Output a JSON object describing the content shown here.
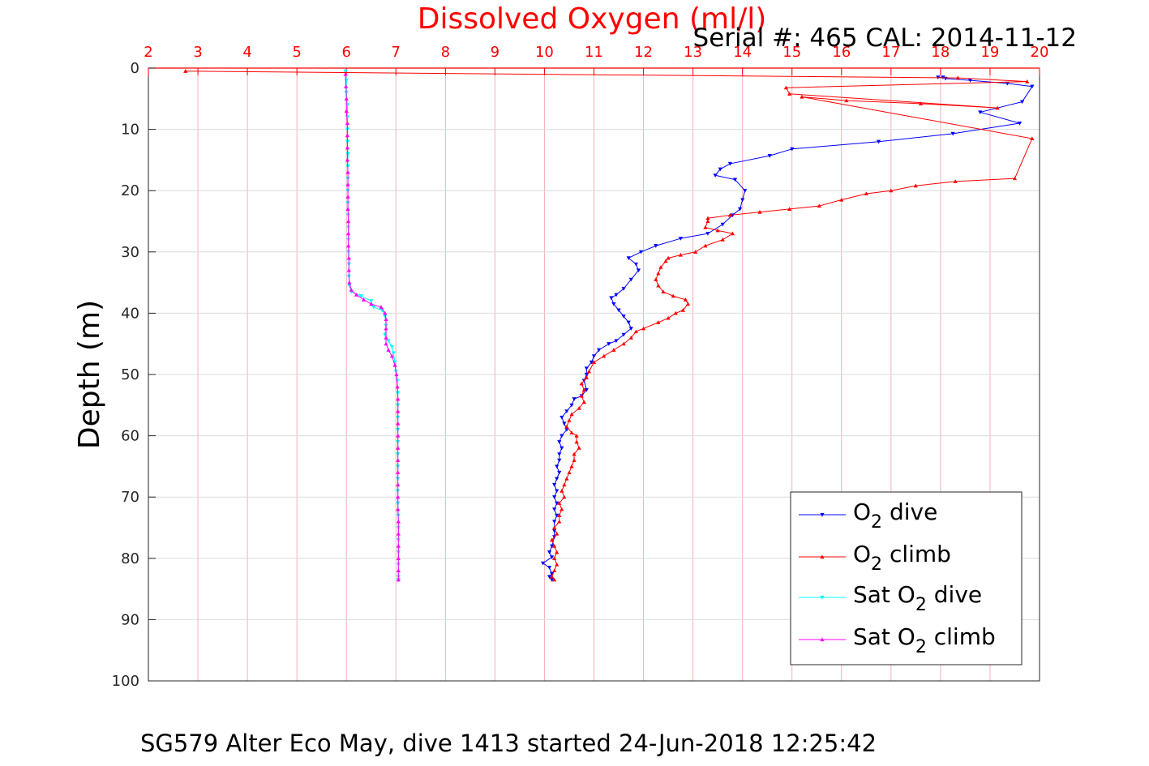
{
  "figure": {
    "title": "Dissolved Oxygen (ml/l)",
    "serial_text": "Serial #: 465  CAL: 2014-11-12",
    "footer": "SG579 Alter Eco May, dive 1413 started 24-Jun-2018 12:25:42"
  },
  "colors": {
    "title": "#ff0000",
    "x_axis": "#ff0000",
    "grid": "#f4b0b8",
    "o2_dive": "#0000ff",
    "o2_climb": "#ff0000",
    "sat_dive": "#00ffff",
    "sat_climb": "#ff00ff"
  },
  "chart_data": {
    "type": "line",
    "title": "Dissolved Oxygen (ml/l)",
    "xlabel": "",
    "ylabel": "Depth (m)",
    "x_axis_position": "top",
    "y_direction": "reversed",
    "xlim": [
      2,
      20
    ],
    "ylim": [
      0,
      100
    ],
    "xticks": [
      2,
      3,
      4,
      5,
      6,
      7,
      8,
      9,
      10,
      11,
      12,
      13,
      14,
      15,
      16,
      17,
      18,
      19,
      20
    ],
    "yticks": [
      0,
      10,
      20,
      30,
      40,
      50,
      60,
      70,
      80,
      90,
      100
    ],
    "grid": true,
    "legend_position": "bottom-right",
    "series": [
      {
        "name": "O2 dive",
        "legend_main": "O",
        "legend_sub": "2",
        "legend_post": " dive",
        "color": "#0000ff",
        "marker": "down-triangle",
        "points": [
          [
            17.95,
            1.5
          ],
          [
            18.05,
            1.5
          ],
          [
            18.1,
            1.7
          ],
          [
            18.6,
            2.0
          ],
          [
            19.35,
            2.5
          ],
          [
            19.85,
            3.0
          ],
          [
            19.65,
            5.5
          ],
          [
            18.8,
            7.2
          ],
          [
            19.6,
            9.0
          ],
          [
            18.25,
            10.7
          ],
          [
            16.75,
            12.0
          ],
          [
            15.0,
            13.2
          ],
          [
            14.55,
            14.3
          ],
          [
            13.75,
            15.6
          ],
          [
            13.55,
            16.5
          ],
          [
            13.45,
            17.5
          ],
          [
            13.85,
            18.2
          ],
          [
            14.05,
            20.0
          ],
          [
            14.0,
            21.5
          ],
          [
            13.95,
            23.0
          ],
          [
            13.8,
            24.0
          ],
          [
            13.6,
            25.5
          ],
          [
            13.3,
            27.0
          ],
          [
            12.75,
            27.8
          ],
          [
            12.25,
            29.0
          ],
          [
            11.95,
            30.0
          ],
          [
            11.7,
            31.0
          ],
          [
            11.85,
            32.0
          ],
          [
            11.9,
            33.0
          ],
          [
            11.75,
            34.5
          ],
          [
            11.6,
            36.0
          ],
          [
            11.45,
            37.0
          ],
          [
            11.35,
            37.5
          ],
          [
            11.4,
            38.5
          ],
          [
            11.5,
            39.5
          ],
          [
            11.6,
            40.5
          ],
          [
            11.7,
            41.5
          ],
          [
            11.75,
            42.5
          ],
          [
            11.6,
            43.5
          ],
          [
            11.45,
            44.5
          ],
          [
            11.3,
            45.0
          ],
          [
            11.1,
            46.0
          ],
          [
            11.0,
            47.0
          ],
          [
            10.95,
            48.0
          ],
          [
            10.85,
            49.0
          ],
          [
            10.85,
            50.0
          ],
          [
            10.8,
            51.0
          ],
          [
            10.85,
            52.5
          ],
          [
            10.75,
            53.5
          ],
          [
            10.6,
            54.0
          ],
          [
            10.55,
            55.0
          ],
          [
            10.45,
            56.0
          ],
          [
            10.35,
            57.0
          ],
          [
            10.4,
            58.0
          ],
          [
            10.45,
            59.0
          ],
          [
            10.35,
            60.0
          ],
          [
            10.3,
            61.0
          ],
          [
            10.35,
            62.0
          ],
          [
            10.3,
            63.0
          ],
          [
            10.3,
            64.0
          ],
          [
            10.25,
            65.0
          ],
          [
            10.3,
            66.0
          ],
          [
            10.25,
            67.0
          ],
          [
            10.2,
            68.0
          ],
          [
            10.25,
            69.0
          ],
          [
            10.2,
            70.0
          ],
          [
            10.25,
            71.0
          ],
          [
            10.2,
            72.0
          ],
          [
            10.25,
            73.0
          ],
          [
            10.2,
            74.0
          ],
          [
            10.2,
            75.5
          ],
          [
            10.2,
            76.5
          ],
          [
            10.15,
            78.0
          ],
          [
            10.1,
            79.0
          ],
          [
            10.15,
            79.8
          ],
          [
            9.97,
            80.8
          ],
          [
            10.1,
            81.5
          ],
          [
            10.15,
            82.5
          ],
          [
            10.1,
            83.0
          ],
          [
            10.15,
            83.5
          ]
        ]
      },
      {
        "name": "O2 climb",
        "legend_main": "O",
        "legend_sub": "2",
        "legend_post": " climb",
        "color": "#ff0000",
        "marker": "up-triangle",
        "points": [
          [
            10.2,
            83.5
          ],
          [
            10.15,
            83.0
          ],
          [
            10.2,
            82.0
          ],
          [
            10.25,
            81.0
          ],
          [
            10.2,
            80.0
          ],
          [
            10.25,
            79.0
          ],
          [
            10.2,
            78.0
          ],
          [
            10.15,
            77.0
          ],
          [
            10.25,
            76.0
          ],
          [
            10.2,
            75.0
          ],
          [
            10.3,
            74.0
          ],
          [
            10.3,
            73.0
          ],
          [
            10.35,
            72.0
          ],
          [
            10.3,
            71.0
          ],
          [
            10.4,
            70.0
          ],
          [
            10.35,
            69.0
          ],
          [
            10.4,
            68.0
          ],
          [
            10.45,
            67.0
          ],
          [
            10.5,
            66.0
          ],
          [
            10.55,
            65.0
          ],
          [
            10.6,
            64.0
          ],
          [
            10.6,
            63.0
          ],
          [
            10.7,
            62.0
          ],
          [
            10.65,
            61.0
          ],
          [
            10.65,
            60.0
          ],
          [
            10.55,
            59.5
          ],
          [
            10.45,
            58.5
          ],
          [
            10.5,
            57.5
          ],
          [
            10.55,
            56.5
          ],
          [
            10.7,
            55.5
          ],
          [
            10.8,
            54.5
          ],
          [
            10.75,
            53.5
          ],
          [
            10.8,
            52.5
          ],
          [
            10.75,
            51.5
          ],
          [
            10.85,
            50.5
          ],
          [
            10.9,
            49.5
          ],
          [
            11.0,
            48.0
          ],
          [
            11.2,
            47.0
          ],
          [
            11.4,
            46.0
          ],
          [
            11.6,
            45.0
          ],
          [
            11.75,
            44.0
          ],
          [
            11.85,
            43.0
          ],
          [
            12.0,
            42.5
          ],
          [
            12.3,
            41.5
          ],
          [
            12.5,
            40.8
          ],
          [
            12.65,
            40.0
          ],
          [
            12.8,
            39.5
          ],
          [
            12.9,
            38.5
          ],
          [
            12.85,
            37.8
          ],
          [
            12.6,
            37.2
          ],
          [
            12.4,
            36.5
          ],
          [
            12.3,
            35.5
          ],
          [
            12.25,
            34.5
          ],
          [
            12.3,
            33.5
          ],
          [
            12.35,
            32.5
          ],
          [
            12.45,
            31.5
          ],
          [
            12.5,
            31.0
          ],
          [
            12.75,
            30.5
          ],
          [
            13.05,
            30.0
          ],
          [
            13.25,
            29.0
          ],
          [
            13.6,
            28.0
          ],
          [
            13.8,
            27.0
          ],
          [
            13.5,
            26.5
          ],
          [
            13.25,
            26.0
          ],
          [
            13.3,
            25.0
          ],
          [
            13.3,
            24.5
          ],
          [
            13.75,
            24.0
          ],
          [
            14.35,
            23.5
          ],
          [
            14.95,
            23.0
          ],
          [
            15.55,
            22.5
          ],
          [
            16.0,
            21.5
          ],
          [
            16.5,
            20.5
          ],
          [
            17.0,
            20.0
          ],
          [
            17.5,
            19.2
          ],
          [
            18.3,
            18.5
          ],
          [
            19.5,
            18.0
          ],
          [
            19.85,
            11.5
          ],
          [
            15.2,
            4.7
          ],
          [
            16.1,
            5.3
          ],
          [
            17.6,
            5.8
          ],
          [
            19.15,
            6.5
          ],
          [
            14.95,
            4.2
          ],
          [
            14.88,
            3.2
          ],
          [
            19.75,
            2.2
          ],
          [
            18.35,
            1.6
          ],
          [
            2.75,
            0.5
          ]
        ]
      },
      {
        "name": "Sat O2 dive",
        "legend_main": "Sat O",
        "legend_sub": "2",
        "legend_post": " dive",
        "color": "#00ffff",
        "marker": "down-triangle",
        "points": [
          [
            5.98,
            0.5
          ],
          [
            6.0,
            2.0
          ],
          [
            6.0,
            4.0
          ],
          [
            6.02,
            6.0
          ],
          [
            6.02,
            8.0
          ],
          [
            6.02,
            10.0
          ],
          [
            6.02,
            12.0
          ],
          [
            6.03,
            14.0
          ],
          [
            6.03,
            16.0
          ],
          [
            6.03,
            18.0
          ],
          [
            6.03,
            20.0
          ],
          [
            6.03,
            22.0
          ],
          [
            6.04,
            24.0
          ],
          [
            6.04,
            26.0
          ],
          [
            6.04,
            28.0
          ],
          [
            6.04,
            30.0
          ],
          [
            6.05,
            32.0
          ],
          [
            6.05,
            34.0
          ],
          [
            6.06,
            35.5
          ],
          [
            6.1,
            36.5
          ],
          [
            6.3,
            37.2
          ],
          [
            6.5,
            38.0
          ],
          [
            6.55,
            39.0
          ],
          [
            6.72,
            39.5
          ],
          [
            6.78,
            40.5
          ],
          [
            6.8,
            42.0
          ],
          [
            6.78,
            43.5
          ],
          [
            6.85,
            44.5
          ],
          [
            6.92,
            45.5
          ],
          [
            6.95,
            46.5
          ],
          [
            6.98,
            48.0
          ],
          [
            7.0,
            49.5
          ],
          [
            7.03,
            51.0
          ],
          [
            7.04,
            53.0
          ],
          [
            7.04,
            55.0
          ],
          [
            7.04,
            57.0
          ],
          [
            7.04,
            59.0
          ],
          [
            7.04,
            61.0
          ],
          [
            7.04,
            63.0
          ],
          [
            7.04,
            65.0
          ],
          [
            7.04,
            67.0
          ],
          [
            7.04,
            69.0
          ],
          [
            7.04,
            71.0
          ],
          [
            7.05,
            73.0
          ],
          [
            7.05,
            75.0
          ],
          [
            7.05,
            77.0
          ],
          [
            7.05,
            79.0
          ],
          [
            7.05,
            81.0
          ],
          [
            7.05,
            83.0
          ],
          [
            7.05,
            83.5
          ]
        ]
      },
      {
        "name": "Sat O2 climb",
        "legend_main": "Sat O",
        "legend_sub": "2",
        "legend_post": " climb",
        "color": "#ff00ff",
        "marker": "up-triangle",
        "points": [
          [
            7.05,
            83.5
          ],
          [
            7.05,
            82.0
          ],
          [
            7.05,
            80.0
          ],
          [
            7.05,
            78.0
          ],
          [
            7.05,
            76.0
          ],
          [
            7.05,
            74.0
          ],
          [
            7.04,
            72.0
          ],
          [
            7.04,
            70.0
          ],
          [
            7.04,
            68.0
          ],
          [
            7.04,
            66.0
          ],
          [
            7.04,
            64.0
          ],
          [
            7.04,
            62.0
          ],
          [
            7.04,
            60.0
          ],
          [
            7.04,
            58.0
          ],
          [
            7.04,
            56.0
          ],
          [
            7.04,
            54.0
          ],
          [
            7.03,
            52.0
          ],
          [
            7.01,
            50.0
          ],
          [
            6.98,
            48.5
          ],
          [
            6.92,
            47.0
          ],
          [
            6.85,
            46.0
          ],
          [
            6.8,
            45.0
          ],
          [
            6.8,
            44.0
          ],
          [
            6.8,
            42.5
          ],
          [
            6.8,
            41.0
          ],
          [
            6.78,
            40.0
          ],
          [
            6.7,
            39.0
          ],
          [
            6.5,
            38.5
          ],
          [
            6.35,
            37.8
          ],
          [
            6.2,
            37.0
          ],
          [
            6.1,
            36.2
          ],
          [
            6.06,
            35.0
          ],
          [
            6.05,
            33.0
          ],
          [
            6.05,
            31.0
          ],
          [
            6.04,
            29.0
          ],
          [
            6.04,
            27.0
          ],
          [
            6.04,
            25.0
          ],
          [
            6.03,
            23.0
          ],
          [
            6.03,
            21.0
          ],
          [
            6.03,
            19.0
          ],
          [
            6.03,
            17.0
          ],
          [
            6.02,
            15.0
          ],
          [
            6.02,
            13.0
          ],
          [
            6.02,
            11.0
          ],
          [
            6.02,
            9.0
          ],
          [
            6.0,
            7.0
          ],
          [
            6.0,
            5.0
          ],
          [
            5.99,
            3.0
          ],
          [
            5.98,
            1.0
          ]
        ]
      }
    ]
  }
}
